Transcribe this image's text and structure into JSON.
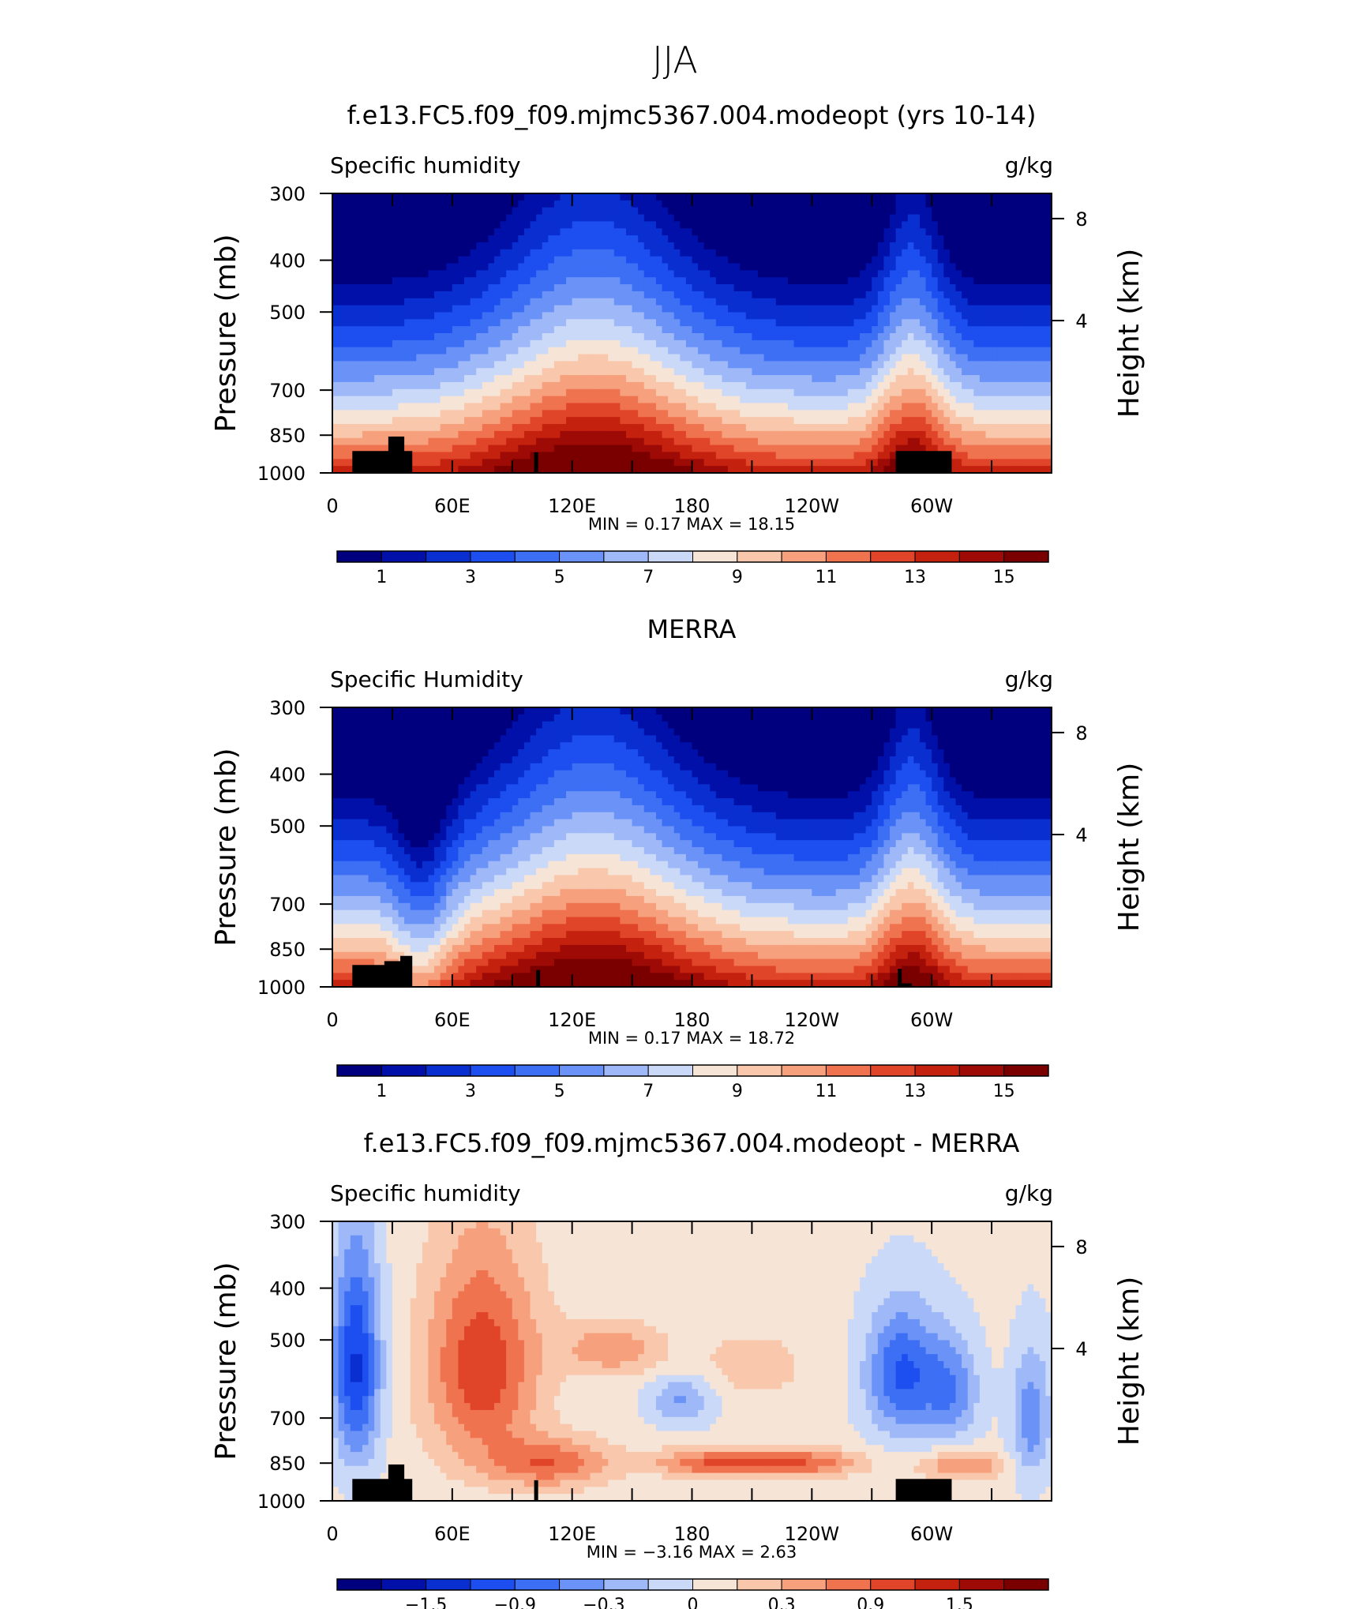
{
  "figure": {
    "suptitle": "JJA",
    "x_tick_labels": [
      "0",
      "60E",
      "120E",
      "180",
      "120W",
      "60W"
    ],
    "y_tick_labels": [
      "300",
      "400",
      "500",
      "700",
      "850",
      "1000"
    ],
    "height_tick_labels": [
      "8",
      "4"
    ],
    "ylabel_left": "Pressure (mb)",
    "ylabel_right": "Height (km)"
  },
  "chart_data": [
    {
      "type": "heatmap",
      "title": "f.e13.FC5.f09_f09.mjmc5367.004.modeopt (yrs 10-14)",
      "left_label": "Specific humidity",
      "right_label": "g/kg",
      "stats_text": "MIN =    0.17   MAX =   18.15",
      "min": 0.17,
      "max": 18.15,
      "x_range": [
        0,
        360
      ],
      "y_axis": "pressure (log)",
      "ylim": [
        1000,
        300
      ],
      "colorbar_labels": [
        "1",
        "3",
        "5",
        "7",
        "9",
        "11",
        "13",
        "15"
      ],
      "colorbar_colors": [
        "#00007f",
        "#0010a8",
        "#0a2fd0",
        "#1c4ef0",
        "#3d6ff5",
        "#6b93f7",
        "#9fb8f8",
        "#cbd9f9",
        "#f6e4d6",
        "#f9c7ab",
        "#f6a07d",
        "#f07350",
        "#e0452a",
        "#c4210f",
        "#9e0a05",
        "#7a0000"
      ]
    },
    {
      "type": "heatmap",
      "title": "MERRA",
      "left_label": "Specific Humidity",
      "right_label": "g/kg",
      "stats_text": "MIN =    0.17   MAX =   18.72",
      "min": 0.17,
      "max": 18.72,
      "x_range": [
        0,
        360
      ],
      "y_axis": "pressure (log)",
      "ylim": [
        1000,
        300
      ],
      "colorbar_labels": [
        "1",
        "3",
        "5",
        "7",
        "9",
        "11",
        "13",
        "15"
      ],
      "colorbar_colors": [
        "#00007f",
        "#0010a8",
        "#0a2fd0",
        "#1c4ef0",
        "#3d6ff5",
        "#6b93f7",
        "#9fb8f8",
        "#cbd9f9",
        "#f6e4d6",
        "#f9c7ab",
        "#f6a07d",
        "#f07350",
        "#e0452a",
        "#c4210f",
        "#9e0a05",
        "#7a0000"
      ]
    },
    {
      "type": "heatmap",
      "title": "f.e13.FC5.f09_f09.mjmc5367.004.modeopt - MERRA",
      "left_label": "Specific humidity",
      "right_label": "g/kg",
      "stats_text": "MIN =  −3.16   MAX =    2.63",
      "min": -3.16,
      "max": 2.63,
      "x_range": [
        0,
        360
      ],
      "y_axis": "pressure (log)",
      "ylim": [
        1000,
        300
      ],
      "colorbar_labels": [
        "−1.5",
        "−0.9",
        "−0.3",
        "0",
        "0.3",
        "0.9",
        "1.5"
      ],
      "colorbar_colors": [
        "#00007f",
        "#0010a8",
        "#0a2fd0",
        "#1c4ef0",
        "#3d6ff5",
        "#6b93f7",
        "#9fb8f8",
        "#cbd9f9",
        "#f6e4d6",
        "#f9c7ab",
        "#f6a07d",
        "#f07350",
        "#e0452a",
        "#c4210f",
        "#9e0a05",
        "#7a0000"
      ]
    }
  ]
}
